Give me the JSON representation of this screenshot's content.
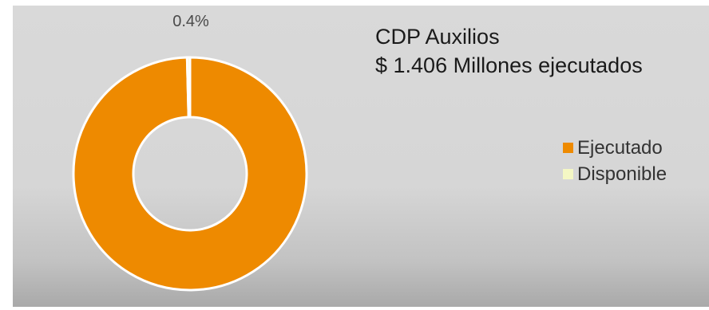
{
  "chart_data": {
    "type": "pie",
    "variant": "donut",
    "title": "CDP Auxilios",
    "subtitle": "$ 1.406 Millones ejecutados",
    "slices": [
      {
        "name": "Ejecutado",
        "value": 99.6,
        "color": "#ee8a00"
      },
      {
        "name": "Disponible",
        "value": 0.4,
        "color": "#f4f7c4"
      }
    ],
    "data_labels": [
      {
        "slice": "Disponible",
        "text": "0.4%"
      }
    ],
    "legend_position": "right"
  }
}
